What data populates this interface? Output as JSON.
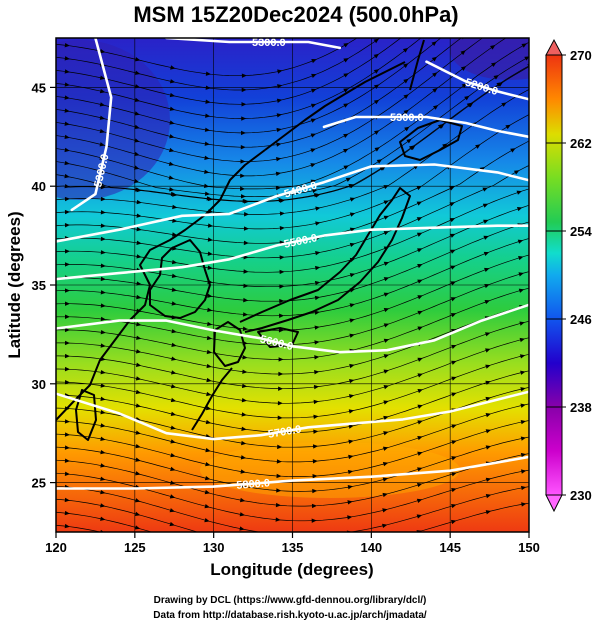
{
  "title": "MSM 15Z20Dec2024 (500.0hPa)",
  "xlabel": "Longitude (degrees)",
  "ylabel": "Latitude  (degrees)",
  "credits": {
    "line1": "Drawing by DCL (https://www.gfd-dennou.org/library/dcl/)",
    "line2": "Data from http://database.rish.kyoto-u.ac.jp/arch/jmadata/"
  },
  "chart_data": {
    "type": "heatmap",
    "xlim": [
      120,
      150
    ],
    "ylim": [
      22.5,
      47.5
    ],
    "xticks": [
      120,
      125,
      130,
      135,
      140,
      145,
      150
    ],
    "yticks": [
      25,
      30,
      35,
      40,
      45
    ],
    "colorbar": {
      "min": 230,
      "max": 270,
      "ticks": [
        230,
        238,
        246,
        254,
        262,
        270
      ],
      "stops": [
        "#ff55ff",
        "#cc00cc",
        "#8800aa",
        "#2200cc",
        "#1155ee",
        "#11aaee",
        "#11ddcc",
        "#22cc55",
        "#77dd22",
        "#dddd00",
        "#ff8800",
        "#ee3311"
      ]
    },
    "contours": [
      {
        "label": "5200.0",
        "points": [
          [
            143.5,
            46.3
          ],
          [
            146,
            45.3
          ],
          [
            148,
            44.8
          ],
          [
            150,
            44.4
          ]
        ]
      },
      {
        "label": "5300.0",
        "points": [
          [
            121,
            38.8
          ],
          [
            122.5,
            39.6
          ],
          [
            123.2,
            42
          ],
          [
            123.5,
            44.5
          ],
          [
            122.5,
            47.5
          ]
        ]
      },
      {
        "label": "5300.0",
        "points": [
          [
            137,
            43
          ],
          [
            139,
            43.5
          ],
          [
            141,
            43.5
          ],
          [
            143.5,
            43.5
          ],
          [
            146,
            43.2
          ],
          [
            148,
            42.8
          ],
          [
            150,
            42.5
          ]
        ]
      },
      {
        "label": "5300.0",
        "points": [
          [
            127,
            47.5
          ],
          [
            131,
            47.3
          ],
          [
            136,
            47.3
          ],
          [
            138,
            47
          ]
        ]
      },
      {
        "label": "5400.0",
        "points": [
          [
            120,
            37.2
          ],
          [
            124,
            37.8
          ],
          [
            128,
            38.5
          ],
          [
            131,
            38.6
          ],
          [
            134,
            39.5
          ],
          [
            137,
            40.2
          ],
          [
            140,
            41
          ],
          [
            144,
            41.1
          ],
          [
            148,
            40.7
          ],
          [
            150,
            40.3
          ]
        ]
      },
      {
        "label": "5500.0",
        "points": [
          [
            120,
            35.3
          ],
          [
            124,
            35.6
          ],
          [
            128,
            35.9
          ],
          [
            131,
            36.3
          ],
          [
            134,
            37
          ],
          [
            137,
            37.5
          ],
          [
            140,
            37.8
          ],
          [
            144,
            37.9
          ],
          [
            148,
            38
          ],
          [
            150,
            38
          ]
        ]
      },
      {
        "label": "5600.0",
        "points": [
          [
            120,
            32.8
          ],
          [
            124,
            33.2
          ],
          [
            127,
            33.2
          ],
          [
            130,
            32.7
          ],
          [
            133,
            32.3
          ],
          [
            135,
            31.9
          ],
          [
            138,
            31.6
          ],
          [
            141,
            31.7
          ],
          [
            144,
            32.2
          ],
          [
            147,
            33.2
          ],
          [
            150,
            34
          ]
        ]
      },
      {
        "label": "5700.0",
        "points": [
          [
            120,
            29.5
          ],
          [
            124,
            28.5
          ],
          [
            127,
            27.5
          ],
          [
            130,
            27.2
          ],
          [
            133,
            27.4
          ],
          [
            136,
            27.8
          ],
          [
            139,
            28
          ],
          [
            142,
            28.2
          ],
          [
            145,
            28.6
          ],
          [
            148,
            29.2
          ],
          [
            150,
            29.6
          ]
        ]
      },
      {
        "label": "5800.0",
        "points": [
          [
            120,
            24.7
          ],
          [
            125,
            24.7
          ],
          [
            130,
            24.8
          ],
          [
            135,
            25.1
          ],
          [
            140,
            25.3
          ],
          [
            145,
            25.6
          ],
          [
            150,
            26.3
          ]
        ]
      }
    ]
  }
}
